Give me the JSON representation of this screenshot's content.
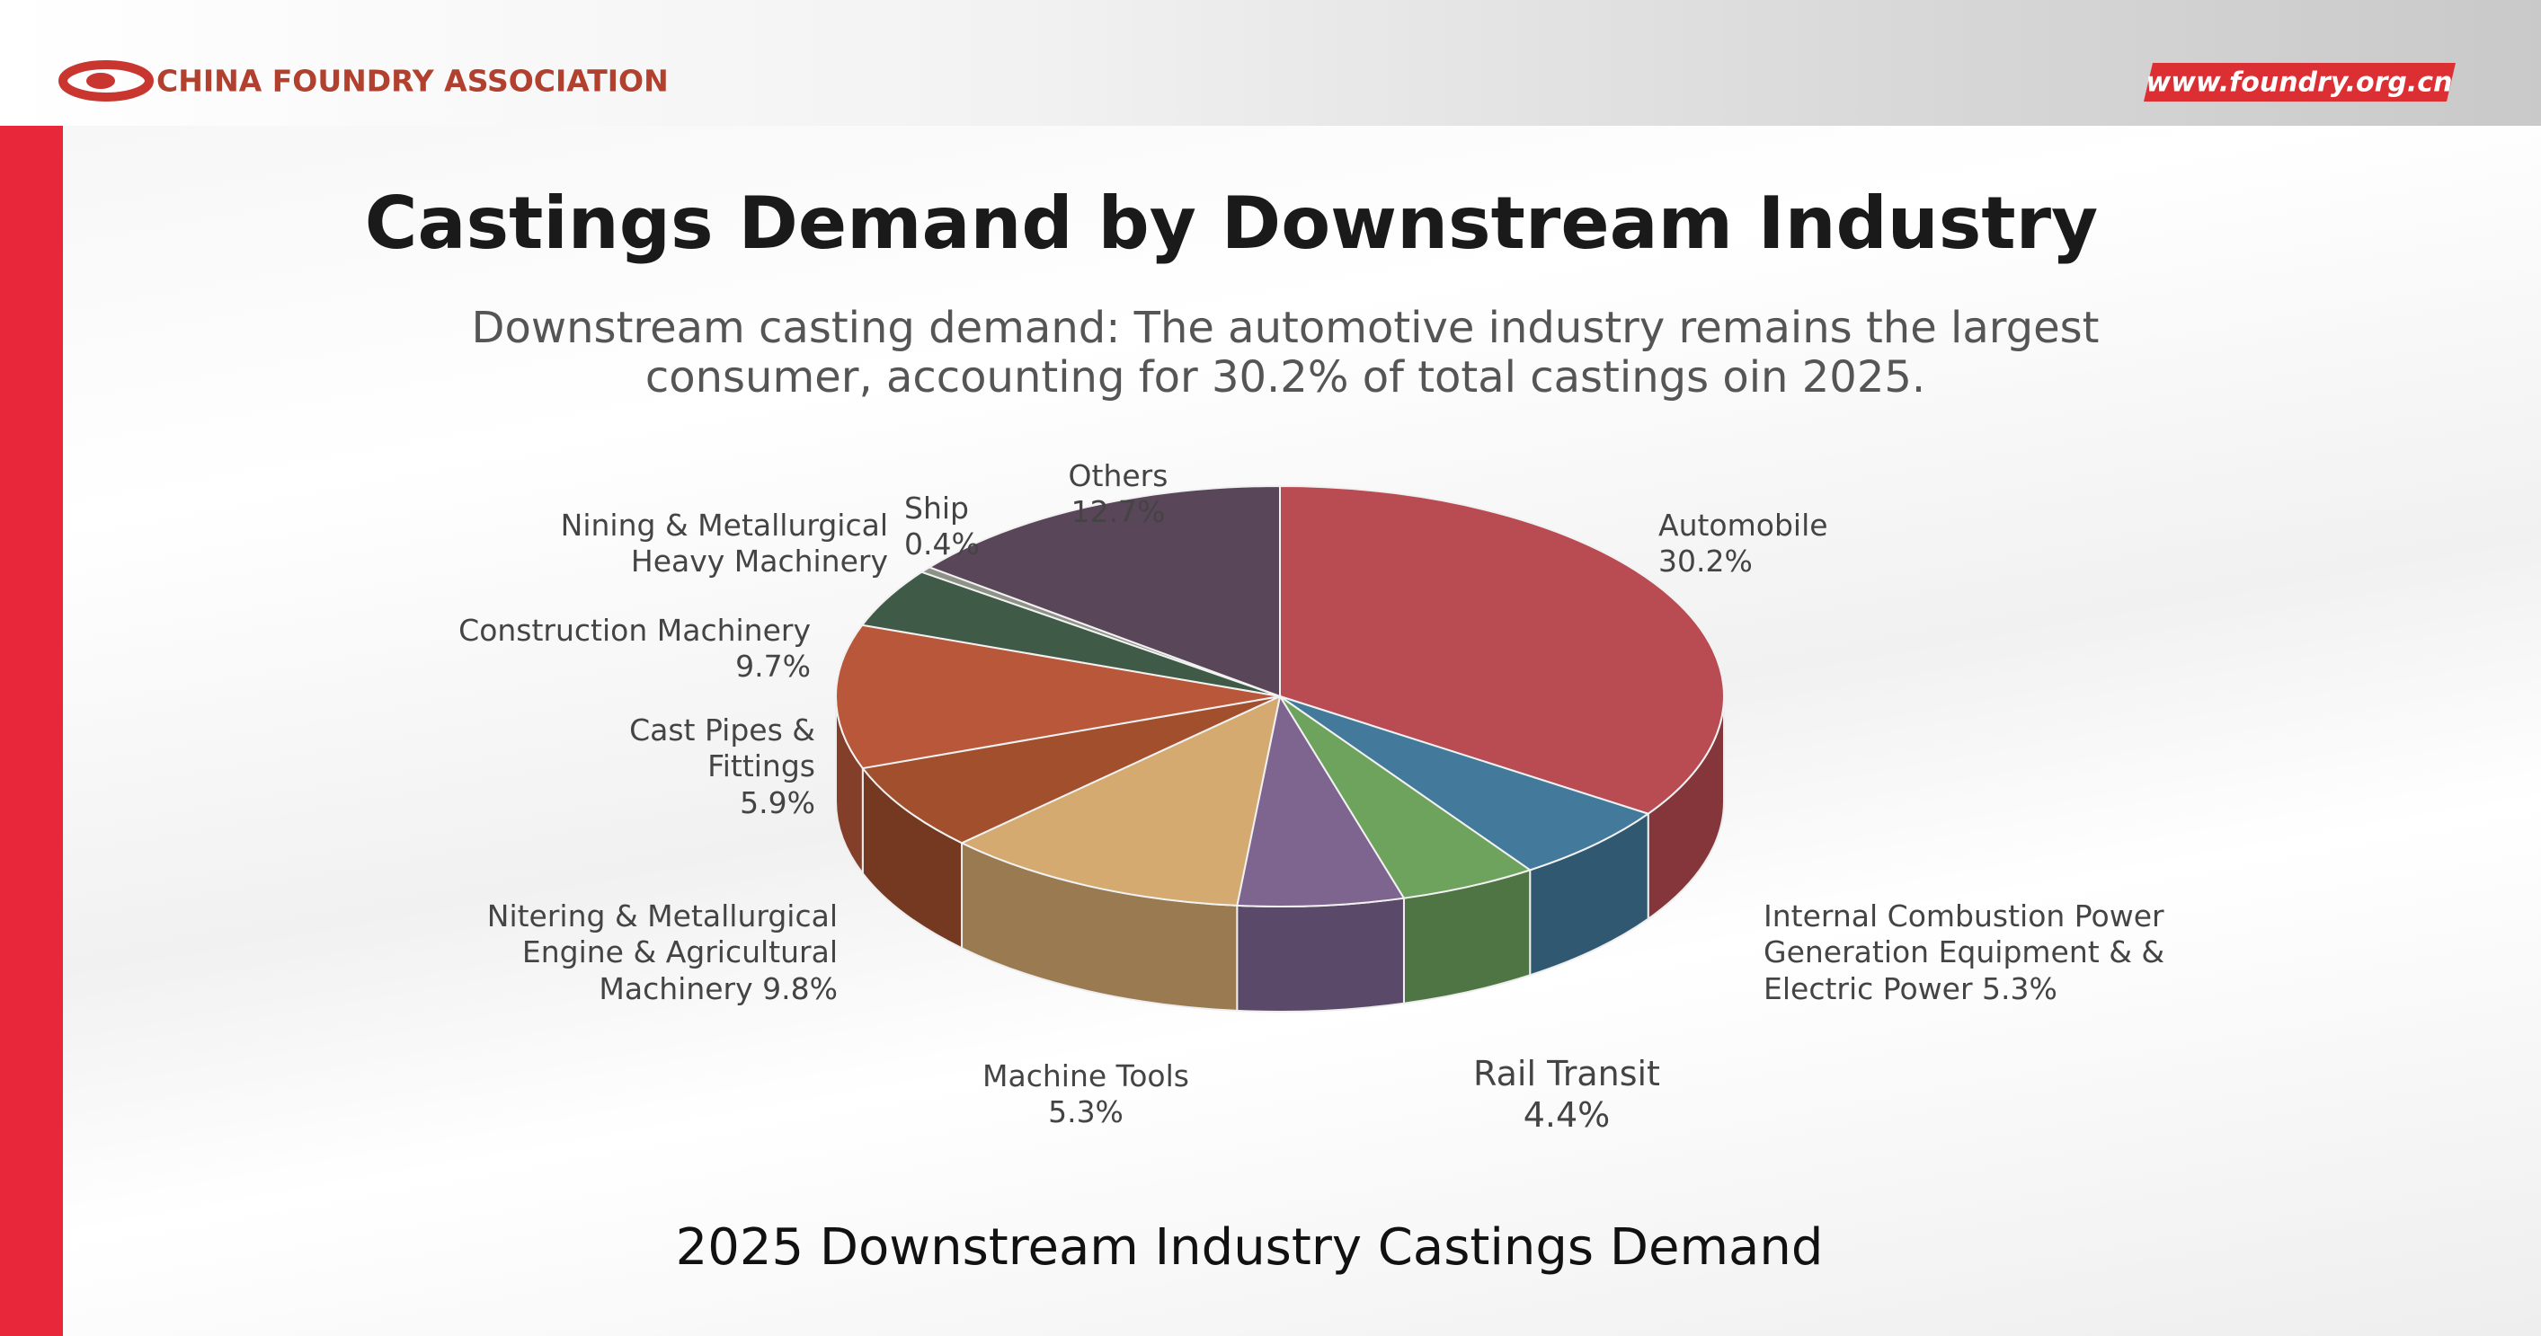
{
  "header": {
    "organization": "CHINA FOUNDRY ASSOCIATION",
    "website": "www.foundry.org.cn"
  },
  "chart_data": {
    "type": "pie3d",
    "title": "Castings Demand by Downstream Industry",
    "subtitle": "Downstream casting demand: The automotive industry remains the largest consumer, accounting for 30.2% of total castings oin 2025.",
    "caption": "2025 Downstream Industry Castings Demand",
    "categories": [
      "Automobile",
      "Internal Combustion Power Generation Equipment & & Electric Power",
      "Rail Transit",
      "Machine Tools",
      "Nitering & Metallurgical Engine & Agricultural Machinery",
      "Cast Pipes & Fittings",
      "Construction Machinery",
      "Nining & Metallurgical Heavy Machinery",
      "Ship",
      "Others"
    ],
    "values": [
      30.2,
      5.3,
      4.4,
      5.3,
      9.8,
      5.9,
      9.7,
      4,
      0.4,
      12.7
    ],
    "value_labels": [
      "30.2%",
      "5.3%",
      "4.4%",
      "5.3%",
      "9.8%",
      "5.9%",
      "9.7%",
      null,
      "0.4%",
      "12.7%"
    ],
    "colors": [
      "#b94b52",
      "#437a9c",
      "#6ea35e",
      "#7d6590",
      "#d5aa70",
      "#a24f2e",
      "#b8573a",
      "#3f5b48",
      "#8d9186",
      "#5a4659"
    ]
  }
}
